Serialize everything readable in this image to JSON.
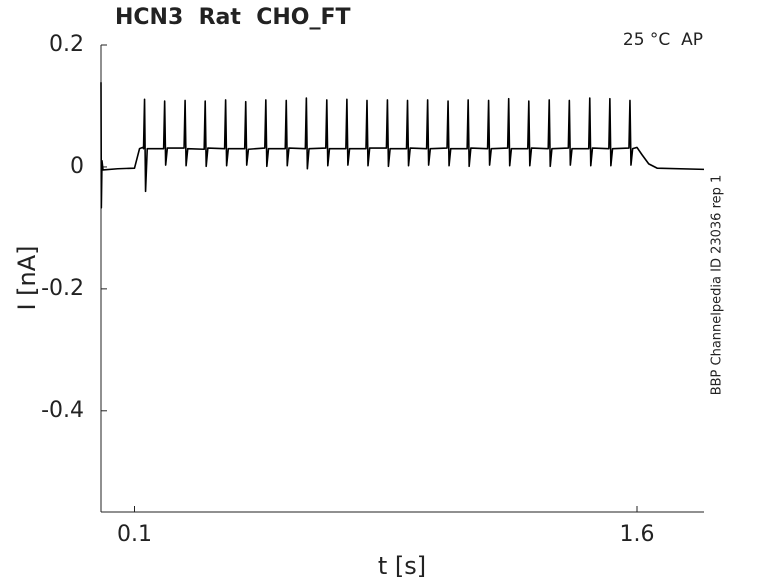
{
  "chart_data": {
    "type": "line",
    "title": "HCN3  Rat  CHO_FT",
    "annotation": "25 °C  AP",
    "side_note": "BBP Channelpedia ID 23036 rep 1",
    "x_label": "t [s]",
    "y_label": "I [nA]",
    "xlim": [
      0,
      1.8
    ],
    "ylim": [
      -0.566,
      0.2
    ],
    "xticks": [
      0.1,
      1.6
    ],
    "yticks": [
      0.2,
      0,
      -0.2,
      -0.4
    ],
    "series": [
      {
        "color": "#000000",
        "x": [
          0,
          0.001,
          0.003,
          0.006,
          0.05,
          0.1,
          0.115,
          0.125,
          0.127,
          0.13,
          0.133,
          0.138,
          0.187,
          0.19,
          0.193,
          0.198,
          0.248,
          0.251,
          0.254,
          0.259,
          0.308,
          0.311,
          0.314,
          0.319,
          0.369,
          0.372,
          0.375,
          0.38,
          0.429,
          0.432,
          0.435,
          0.44,
          0.489,
          0.492,
          0.495,
          0.5,
          0.55,
          0.553,
          0.556,
          0.561,
          0.61,
          0.613,
          0.616,
          0.621,
          0.671,
          0.674,
          0.677,
          0.682,
          0.731,
          0.734,
          0.737,
          0.742,
          0.791,
          0.794,
          0.797,
          0.802,
          0.852,
          0.855,
          0.858,
          0.863,
          0.912,
          0.915,
          0.918,
          0.923,
          0.972,
          0.975,
          0.978,
          0.983,
          1.033,
          1.036,
          1.039,
          1.044,
          1.093,
          1.096,
          1.099,
          1.104,
          1.154,
          1.157,
          1.16,
          1.165,
          1.214,
          1.217,
          1.22,
          1.225,
          1.274,
          1.277,
          1.28,
          1.285,
          1.335,
          1.338,
          1.341,
          1.346,
          1.395,
          1.398,
          1.401,
          1.406,
          1.456,
          1.459,
          1.462,
          1.467,
          1.516,
          1.519,
          1.522,
          1.527,
          1.576,
          1.579,
          1.582,
          1.587,
          1.6,
          1.615,
          1.635,
          1.66,
          1.8
        ],
        "values": [
          0.139,
          -0.067,
          0.01,
          -0.005,
          -0.003,
          -0.002,
          0.03,
          0.032,
          0.03,
          0.111,
          -0.04,
          0.03,
          0.03,
          0.108,
          0.003,
          0.031,
          0.031,
          0.109,
          0.002,
          0.03,
          0.029,
          0.108,
          0.001,
          0.031,
          0.03,
          0.11,
          0.002,
          0.03,
          0.03,
          0.107,
          0.003,
          0.029,
          0.031,
          0.11,
          0.001,
          0.03,
          0.03,
          0.109,
          0.002,
          0.031,
          0.03,
          0.113,
          -0.003,
          0.03,
          0.031,
          0.11,
          0.002,
          0.03,
          0.03,
          0.111,
          0.003,
          0.03,
          0.03,
          0.109,
          0.002,
          0.031,
          0.031,
          0.11,
          0.001,
          0.03,
          0.03,
          0.109,
          0.002,
          0.031,
          0.03,
          0.11,
          0.003,
          0.03,
          0.031,
          0.108,
          0.002,
          0.03,
          0.03,
          0.11,
          0.001,
          0.031,
          0.03,
          0.109,
          0.003,
          0.03,
          0.031,
          0.112,
          0.002,
          0.03,
          0.03,
          0.108,
          0.002,
          0.031,
          0.03,
          0.11,
          0.001,
          0.03,
          0.031,
          0.109,
          0.003,
          0.03,
          0.03,
          0.113,
          0.002,
          0.031,
          0.03,
          0.112,
          0.002,
          0.03,
          0.031,
          0.109,
          0.003,
          0.03,
          0.032,
          0.02,
          0.005,
          -0.002,
          -0.004
        ]
      }
    ]
  }
}
